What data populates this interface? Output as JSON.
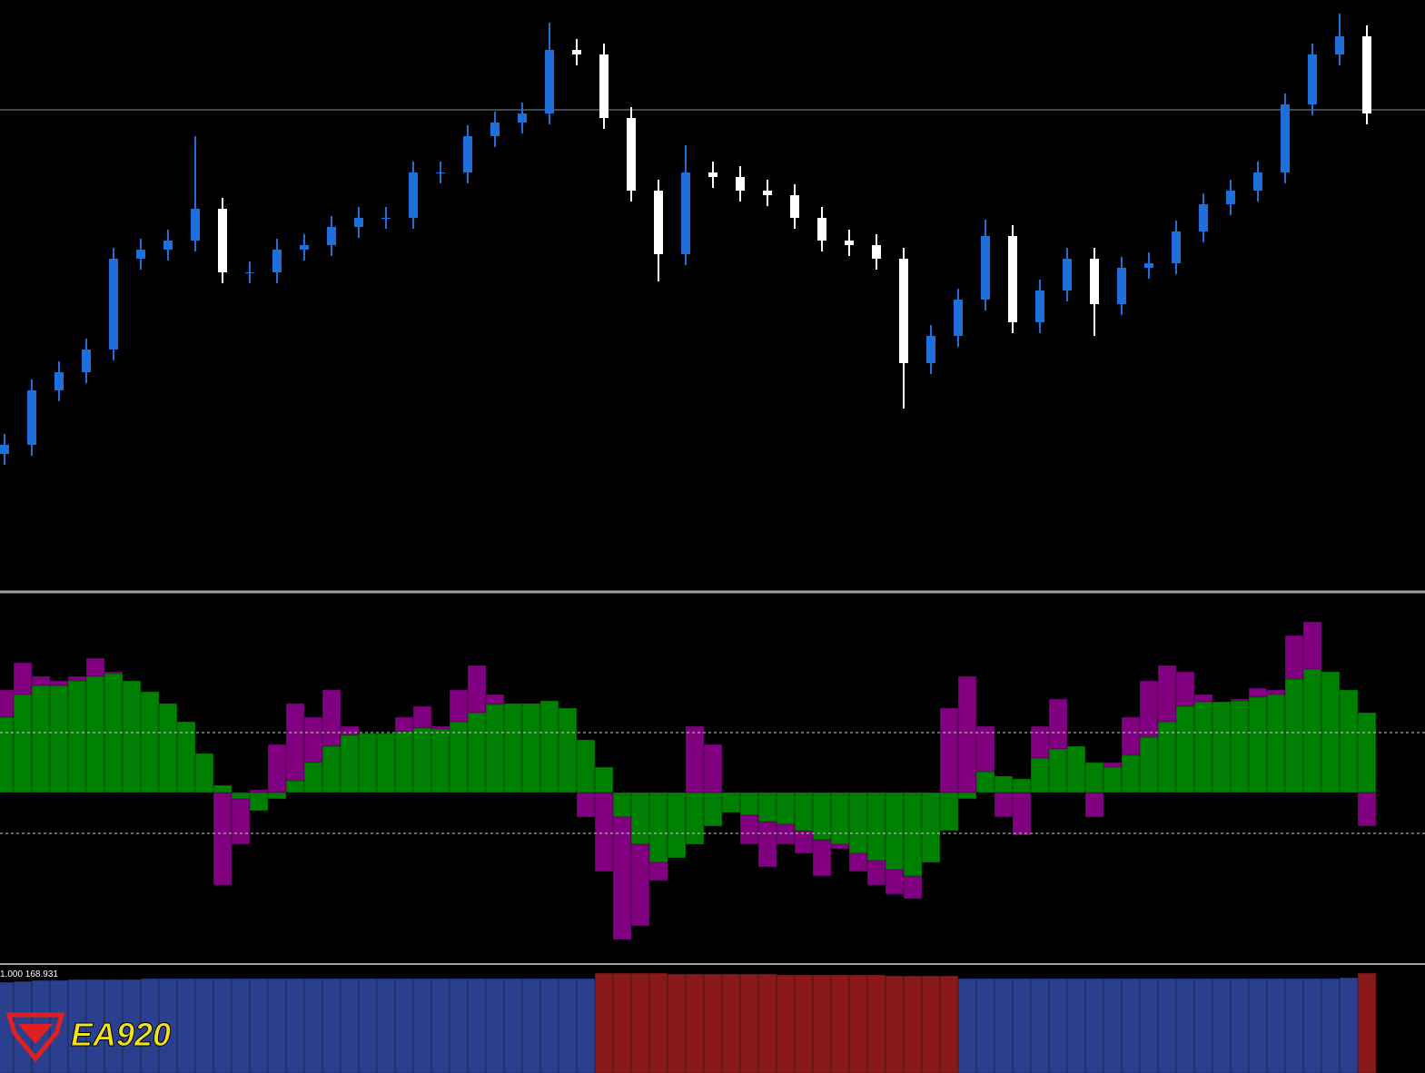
{
  "chart_data": [
    {
      "type": "candlestick",
      "open": [
        150,
        160,
        220,
        240,
        265,
        365,
        375,
        385,
        420,
        350,
        350,
        375,
        380,
        400,
        410,
        410,
        460,
        460,
        500,
        515,
        525,
        595,
        590,
        520,
        440,
        370,
        460,
        455,
        440,
        435,
        410,
        385,
        380,
        365,
        250,
        280,
        320,
        390,
        295,
        330,
        365,
        315,
        355,
        360,
        395,
        425,
        440,
        460,
        535,
        590,
        610
      ],
      "high": [
        172,
        232,
        252,
        277,
        377,
        387,
        397,
        500,
        432,
        362,
        387,
        392,
        412,
        422,
        422,
        472,
        472,
        512,
        527,
        537,
        625,
        607,
        602,
        532,
        452,
        490,
        472,
        467,
        452,
        447,
        422,
        397,
        392,
        377,
        292,
        332,
        408,
        402,
        342,
        377,
        377,
        367,
        372,
        407,
        437,
        452,
        472,
        547,
        602,
        635,
        622
      ],
      "low": [
        138,
        148,
        208,
        228,
        253,
        353,
        363,
        373,
        338,
        338,
        338,
        363,
        368,
        388,
        398,
        398,
        448,
        448,
        488,
        503,
        513,
        578,
        508,
        428,
        340,
        358,
        443,
        428,
        423,
        398,
        373,
        368,
        353,
        200,
        238,
        268,
        308,
        283,
        283,
        318,
        280,
        303,
        343,
        348,
        383,
        413,
        428,
        448,
        523,
        578,
        513
      ],
      "close": [
        160,
        220,
        240,
        265,
        365,
        375,
        385,
        420,
        350,
        350,
        375,
        380,
        400,
        410,
        410,
        460,
        460,
        500,
        515,
        525,
        595,
        590,
        520,
        440,
        370,
        460,
        455,
        440,
        435,
        410,
        385,
        380,
        365,
        250,
        280,
        320,
        390,
        295,
        330,
        365,
        315,
        355,
        360,
        395,
        425,
        440,
        460,
        535,
        590,
        610,
        525
      ],
      "ylim": [
        0,
        650
      ],
      "hline": 529,
      "up_color": "#1e6fd9",
      "down_color": "#ffffff",
      "hline_color": "#7f93ad"
    },
    {
      "type": "oscillator",
      "series": [
        {
          "color": "#800080",
          "values": [
            113,
            143,
            128,
            123,
            128,
            148,
            133,
            123,
            108,
            93,
            73,
            23,
            -102,
            -57,
            3,
            53,
            98,
            83,
            113,
            73,
            65,
            65,
            83,
            95,
            73,
            113,
            140,
            108,
            98,
            98,
            101,
            83,
            -27,
            -87,
            -162,
            -147,
            -97,
            -27,
            73,
            53,
            -7,
            -57,
            -82,
            -57,
            -67,
            -92,
            -62,
            -87,
            -102,
            -112,
            -117,
            -57,
            93,
            128,
            73,
            -27,
            -47,
            73,
            103,
            43,
            -27,
            33,
            83,
            123,
            140,
            133,
            108,
            98,
            103,
            115,
            113,
            173,
            188,
            133,
            113,
            -37
          ]
        },
        {
          "color": "#008000",
          "values": [
            83,
            108,
            118,
            118,
            123,
            128,
            131,
            123,
            111,
            98,
            78,
            43,
            8,
            -7,
            -20,
            -7,
            13,
            33,
            51,
            63,
            65,
            65,
            67,
            71,
            70,
            78,
            88,
            97,
            98,
            98,
            101,
            93,
            58,
            28,
            -27,
            -57,
            -77,
            -72,
            -57,
            -37,
            -22,
            -25,
            -32,
            -35,
            -42,
            -52,
            -57,
            -67,
            -75,
            -85,
            -92,
            -77,
            -42,
            -7,
            23,
            18,
            15,
            38,
            48,
            51,
            33,
            28,
            41,
            61,
            78,
            95,
            100,
            100,
            101,
            105,
            108,
            125,
            136,
            133,
            113,
            88
          ]
        }
      ],
      "ylim": [
        -187,
        218
      ],
      "levels": [
        66,
        -45
      ],
      "level_color": "#cfcfcf"
    },
    {
      "type": "bar",
      "label": "1.000 168.931",
      "values": [
        100,
        101,
        102,
        102,
        103,
        103,
        103,
        103,
        104,
        104,
        104,
        104,
        104,
        104,
        104,
        104,
        104,
        104,
        104,
        104,
        104,
        104,
        104,
        104,
        104,
        104,
        104,
        104,
        104,
        104,
        104,
        104,
        104,
        110,
        110,
        110,
        110,
        109,
        109,
        109,
        109,
        109,
        109,
        108,
        108,
        108,
        108,
        108,
        108,
        107,
        107,
        107,
        107,
        104,
        104,
        104,
        104,
        104,
        104,
        104,
        104,
        104,
        104,
        104,
        104,
        104,
        104,
        104,
        104,
        104,
        104,
        104,
        104,
        104,
        105,
        110
      ],
      "colors": [
        "#2b3f8f",
        "#2b3f8f",
        "#2b3f8f",
        "#2b3f8f",
        "#2b3f8f",
        "#2b3f8f",
        "#2b3f8f",
        "#2b3f8f",
        "#2b3f8f",
        "#2b3f8f",
        "#2b3f8f",
        "#2b3f8f",
        "#2b3f8f",
        "#2b3f8f",
        "#2b3f8f",
        "#2b3f8f",
        "#2b3f8f",
        "#2b3f8f",
        "#2b3f8f",
        "#2b3f8f",
        "#2b3f8f",
        "#2b3f8f",
        "#2b3f8f",
        "#2b3f8f",
        "#2b3f8f",
        "#2b3f8f",
        "#2b3f8f",
        "#2b3f8f",
        "#2b3f8f",
        "#2b3f8f",
        "#2b3f8f",
        "#2b3f8f",
        "#2b3f8f",
        "#8a1a1a",
        "#8a1a1a",
        "#8a1a1a",
        "#8a1a1a",
        "#8a1a1a",
        "#8a1a1a",
        "#8a1a1a",
        "#8a1a1a",
        "#8a1a1a",
        "#8a1a1a",
        "#8a1a1a",
        "#8a1a1a",
        "#8a1a1a",
        "#8a1a1a",
        "#8a1a1a",
        "#8a1a1a",
        "#8a1a1a",
        "#8a1a1a",
        "#8a1a1a",
        "#8a1a1a",
        "#2b3f8f",
        "#2b3f8f",
        "#2b3f8f",
        "#2b3f8f",
        "#2b3f8f",
        "#2b3f8f",
        "#2b3f8f",
        "#2b3f8f",
        "#2b3f8f",
        "#2b3f8f",
        "#2b3f8f",
        "#2b3f8f",
        "#2b3f8f",
        "#2b3f8f",
        "#2b3f8f",
        "#2b3f8f",
        "#2b3f8f",
        "#2b3f8f",
        "#2b3f8f",
        "#2b3f8f",
        "#2b3f8f",
        "#2b3f8f",
        "#8a1a1a"
      ],
      "ylim": [
        0,
        116
      ]
    }
  ],
  "logo": {
    "text": "EA920"
  }
}
